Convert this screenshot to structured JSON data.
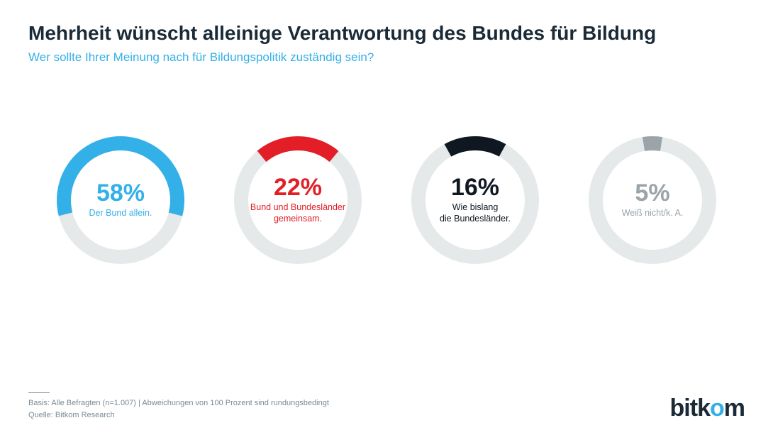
{
  "title": "Mehrheit wünscht alleinige Verantwortung des Bundes für Bildung",
  "subtitle": "Wer sollte Ihrer Meinung nach für Bildungspolitik zuständig sein?",
  "subtitle_color": "#34b0e8",
  "title_color": "#1a2a36",
  "background_color": "#ffffff",
  "track_color": "#e6e9ea",
  "ring_thickness": 20,
  "ring_radius": 80,
  "donuts": [
    {
      "percent": 58,
      "percent_text": "58%",
      "label": "Der Bund allein.",
      "color": "#34b0e8"
    },
    {
      "percent": 22,
      "percent_text": "22%",
      "label": "Bund und Bundesländer\ngemeinsam.",
      "color": "#e41e26"
    },
    {
      "percent": 16,
      "percent_text": "16%",
      "label": "Wie bislang\ndie Bundesländer.",
      "color": "#0f1820"
    },
    {
      "percent": 5,
      "percent_text": "5%",
      "label": "Weiß nicht/k. A.",
      "color": "#9aa4a9"
    }
  ],
  "footer_line1": "Basis: Alle Befragten (n=1.007) | Abweichungen von 100 Prozent sind rundungsbedingt",
  "footer_line2": "Quelle: Bitkom Research",
  "footer_color": "#7a8a93",
  "logo_text_pre": "bitk",
  "logo_text_o": "o",
  "logo_text_post": "m",
  "logo_color_main": "#1a2a36",
  "logo_color_accent": "#34b0e8"
}
